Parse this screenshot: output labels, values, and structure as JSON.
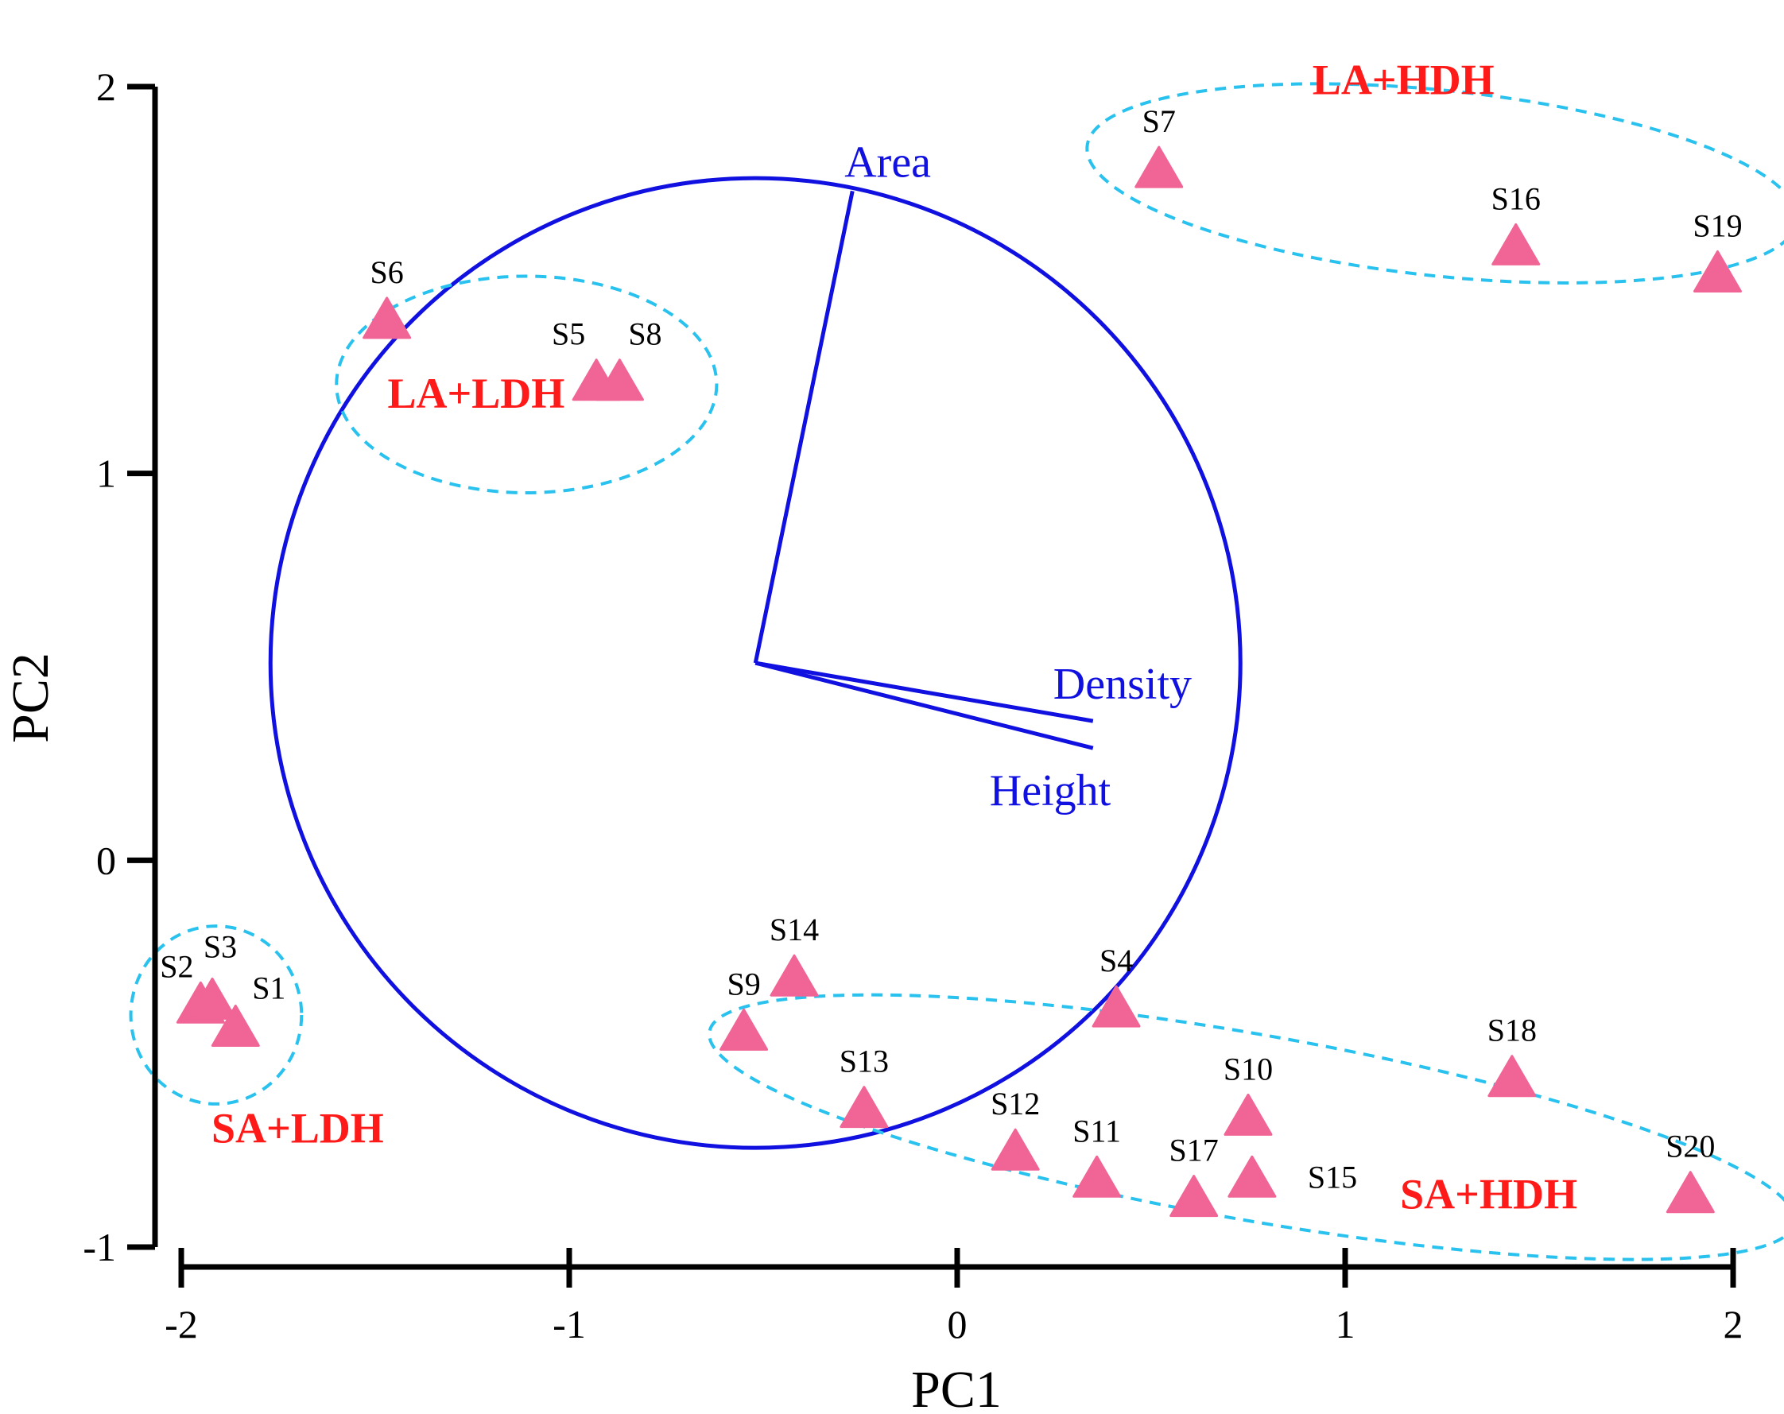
{
  "chart_data": {
    "type": "scatter",
    "title": "",
    "xlabel": "PC1",
    "ylabel": "PC2",
    "xlim": [
      -2,
      2
    ],
    "ylim": [
      -1,
      2
    ],
    "xticks": [
      "-2",
      "-1",
      "0",
      "1",
      "2"
    ],
    "yticks": [
      "-1",
      "0",
      "1",
      "2"
    ],
    "grid": false,
    "marker_color": "#f06595",
    "points": [
      {
        "name": "S1",
        "x": -1.86,
        "y": -0.44
      },
      {
        "name": "S2",
        "x": -1.95,
        "y": -0.38
      },
      {
        "name": "S3",
        "x": -1.92,
        "y": -0.37
      },
      {
        "name": "S4",
        "x": 0.41,
        "y": -0.39
      },
      {
        "name": "S5",
        "x": -0.93,
        "y": 1.23
      },
      {
        "name": "S6",
        "x": -1.47,
        "y": 1.39
      },
      {
        "name": "S7",
        "x": 0.52,
        "y": 1.78
      },
      {
        "name": "S8",
        "x": -0.87,
        "y": 1.23
      },
      {
        "name": "S9",
        "x": -0.55,
        "y": -0.45
      },
      {
        "name": "S10",
        "x": 0.75,
        "y": -0.67
      },
      {
        "name": "S11",
        "x": 0.36,
        "y": -0.83
      },
      {
        "name": "S12",
        "x": 0.15,
        "y": -0.76
      },
      {
        "name": "S13",
        "x": -0.24,
        "y": -0.65
      },
      {
        "name": "S14",
        "x": -0.42,
        "y": -0.31
      },
      {
        "name": "S15",
        "x": 0.76,
        "y": -0.83
      },
      {
        "name": "S16",
        "x": 1.44,
        "y": 1.58
      },
      {
        "name": "S17",
        "x": 0.61,
        "y": -0.88
      },
      {
        "name": "S18",
        "x": 1.43,
        "y": -0.57
      },
      {
        "name": "S19",
        "x": 1.96,
        "y": 1.51
      },
      {
        "name": "S20",
        "x": 1.89,
        "y": -0.87
      }
    ],
    "loadings": {
      "color": "#1010e0",
      "origin": {
        "x": -0.52,
        "y": 0.51
      },
      "circle_radius_x": 1.25,
      "vectors": [
        {
          "name": "Area",
          "x": -0.27,
          "y": 1.73
        },
        {
          "name": "Density",
          "x": 0.35,
          "y": 0.36
        },
        {
          "name": "Height",
          "x": 0.35,
          "y": 0.29
        }
      ]
    },
    "groups": {
      "color": "#29c2ee",
      "items": [
        {
          "name": "LA+HDH",
          "cx": 1.25,
          "cy": 1.75,
          "rx": 0.92,
          "ry": 0.24,
          "rotate": 6
        },
        {
          "name": "LA+LDH",
          "cx": -1.11,
          "cy": 1.23,
          "rx": 0.49,
          "ry": 0.28,
          "rotate": 0
        },
        {
          "name": "SA+LDH",
          "cx": -1.91,
          "cy": -0.4,
          "rx": 0.22,
          "ry": 0.23,
          "rotate": 0
        },
        {
          "name": "SA+HDH",
          "cx": 0.76,
          "cy": -0.69,
          "rx": 1.42,
          "ry": 0.24,
          "rotate": 10
        }
      ],
      "labels": [
        {
          "name": "LA+HDH",
          "x": 1.15,
          "y": 1.98
        },
        {
          "name": "LA+LDH",
          "x": -1.24,
          "y": 1.17
        },
        {
          "name": "SA+LDH",
          "x": -1.7,
          "y": -0.73
        },
        {
          "name": "SA+HDH",
          "x": 1.37,
          "y": -0.9
        }
      ]
    }
  }
}
